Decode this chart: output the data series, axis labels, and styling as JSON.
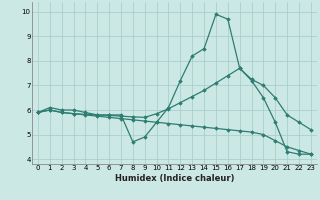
{
  "xlabel": "Humidex (Indice chaleur)",
  "background_color": "#cce8e4",
  "grid_color": "#aacfca",
  "line_color": "#2e7d72",
  "xlim": [
    -0.5,
    23.5
  ],
  "ylim": [
    3.8,
    10.4
  ],
  "xticks": [
    0,
    1,
    2,
    3,
    4,
    5,
    6,
    7,
    8,
    9,
    10,
    11,
    12,
    13,
    14,
    15,
    16,
    17,
    18,
    19,
    20,
    21,
    22,
    23
  ],
  "yticks": [
    4,
    5,
    6,
    7,
    8,
    9,
    10
  ],
  "series1_x": [
    0,
    1,
    2,
    3,
    4,
    5,
    6,
    7,
    8,
    9,
    10,
    11,
    12,
    13,
    14,
    15,
    16,
    17,
    18,
    19,
    20,
    21,
    22,
    23
  ],
  "series1_y": [
    5.9,
    6.1,
    6.0,
    6.0,
    5.9,
    5.8,
    5.8,
    5.8,
    4.7,
    4.9,
    5.5,
    6.1,
    7.2,
    8.2,
    8.5,
    9.9,
    9.7,
    7.7,
    7.2,
    6.5,
    5.5,
    4.3,
    4.2,
    4.2
  ],
  "series2_x": [
    0,
    1,
    2,
    3,
    4,
    5,
    6,
    7,
    8,
    9,
    10,
    11,
    12,
    13,
    14,
    15,
    16,
    17,
    18,
    19,
    20,
    21,
    22,
    23
  ],
  "series2_y": [
    5.9,
    6.0,
    5.9,
    5.85,
    5.82,
    5.8,
    5.78,
    5.75,
    5.72,
    5.7,
    5.85,
    6.05,
    6.3,
    6.55,
    6.8,
    7.1,
    7.4,
    7.7,
    7.25,
    7.0,
    6.5,
    5.8,
    5.5,
    5.2
  ],
  "series3_x": [
    0,
    1,
    2,
    3,
    4,
    5,
    6,
    7,
    8,
    9,
    10,
    11,
    12,
    13,
    14,
    15,
    16,
    17,
    18,
    19,
    20,
    21,
    22,
    23
  ],
  "series3_y": [
    5.9,
    6.0,
    5.9,
    5.85,
    5.8,
    5.75,
    5.7,
    5.65,
    5.6,
    5.55,
    5.5,
    5.45,
    5.4,
    5.35,
    5.3,
    5.25,
    5.2,
    5.15,
    5.1,
    5.0,
    4.75,
    4.5,
    4.35,
    4.2
  ]
}
